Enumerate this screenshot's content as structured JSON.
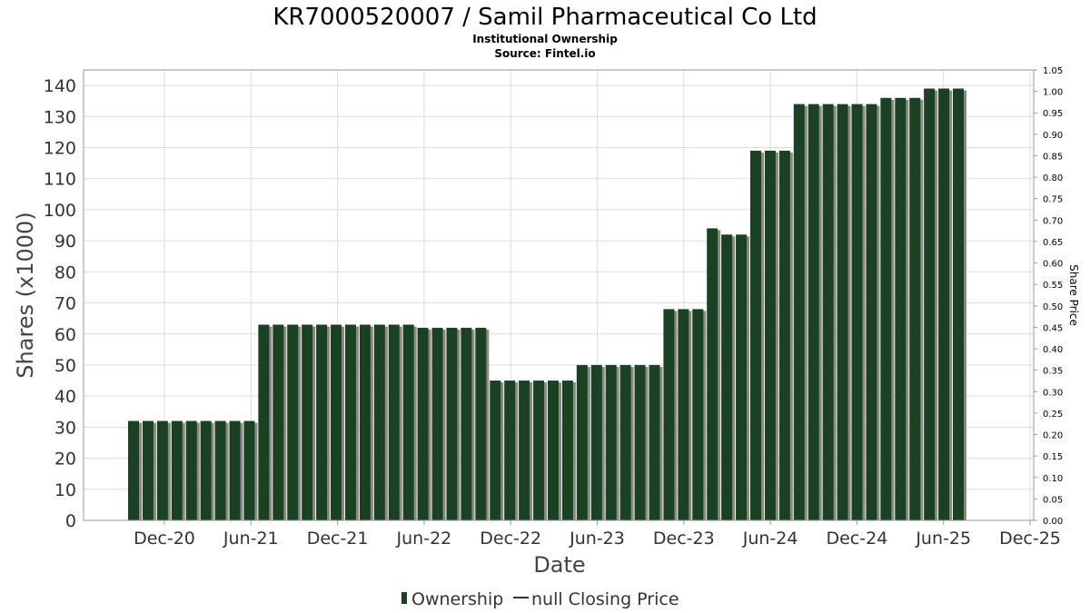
{
  "colors": {
    "bar": "#1a4222",
    "bar_shadow": "#8a8a82",
    "grid": "#dddddd",
    "plot_border": "#999999"
  },
  "chart_data": {
    "type": "bar",
    "title": "KR7000520007 / Samil Pharmaceutical Co Ltd",
    "subtitle": "Institutional Ownership",
    "source": "Source: Fintel.io",
    "xlabel": "Date",
    "ylabel": "Shares (x1000)",
    "y2label": "Share Price",
    "ylim": [
      0,
      145
    ],
    "y_ticks": [
      0,
      10,
      20,
      30,
      40,
      50,
      60,
      70,
      80,
      90,
      100,
      110,
      120,
      130,
      140
    ],
    "y2lim": [
      0,
      1.05
    ],
    "y2_ticks": [
      "0.00",
      "0.05",
      "0.10",
      "0.15",
      "0.20",
      "0.25",
      "0.30",
      "0.35",
      "0.40",
      "0.45",
      "0.50",
      "0.55",
      "0.60",
      "0.65",
      "0.70",
      "0.75",
      "0.80",
      "0.85",
      "0.90",
      "0.95",
      "1.00",
      "1.05"
    ],
    "x_ticks": [
      "Dec-20",
      "Jun-21",
      "Dec-21",
      "Jun-22",
      "Dec-22",
      "Jun-23",
      "Dec-23",
      "Jun-24",
      "Dec-24",
      "Jun-25",
      "Dec-25"
    ],
    "grid": true,
    "legend": {
      "position": "bottom",
      "items": [
        "Ownership",
        "null Closing Price"
      ]
    },
    "series": [
      {
        "name": "Ownership",
        "values": [
          32,
          32,
          32,
          32,
          32,
          32,
          32,
          32,
          32,
          63,
          63,
          63,
          63,
          63,
          63,
          63,
          63,
          63,
          63,
          63,
          62,
          62,
          62,
          62,
          62,
          45,
          45,
          45,
          45,
          45,
          45,
          50,
          50,
          50,
          50,
          50,
          50,
          68,
          68,
          68,
          94,
          92,
          92,
          119,
          119,
          119,
          134,
          134,
          134,
          134,
          134,
          134,
          136,
          136,
          136,
          139,
          139,
          139
        ]
      }
    ]
  }
}
